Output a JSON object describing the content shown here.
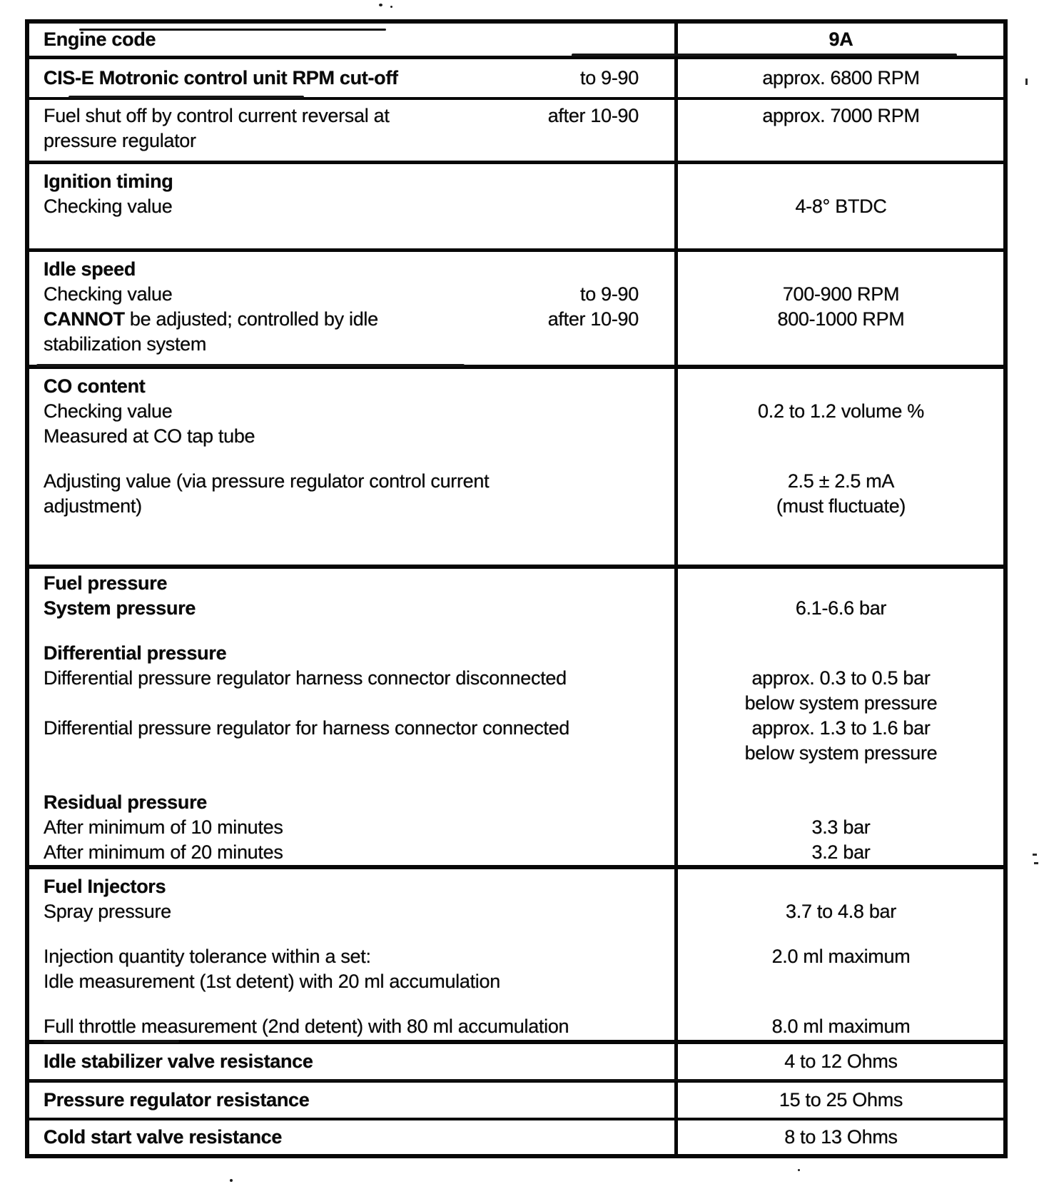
{
  "page": {
    "paper_color": "#ffffff",
    "ink_color": "#0a0a0a"
  },
  "table": {
    "rows": [
      {
        "lines": [
          {
            "left": {
              "text": "Engine code",
              "bold": true
            },
            "right": {
              "text": "9A",
              "bold": true
            }
          }
        ]
      },
      {
        "lines": [
          {
            "left": {
              "text": "CIS-E Motronic control unit RPM cut-off",
              "bold": true,
              "cond": "to 9-90"
            },
            "right": {
              "text": "approx. 6800 RPM"
            }
          }
        ]
      },
      {
        "lines": [
          {
            "left": {
              "text": "Fuel shut off by control current reversal at",
              "cond": "after 10-90"
            },
            "right": {
              "text": "approx. 7000 RPM"
            }
          },
          {
            "left": {
              "text": "pressure regulator"
            },
            "right": {
              "text": ""
            }
          }
        ]
      },
      {
        "lines": [
          {
            "left": {
              "text": "Ignition timing",
              "bold": true
            },
            "right": {
              "text": ""
            }
          },
          {
            "left": {
              "text": "Checking value"
            },
            "right": {
              "text": "4-8° BTDC"
            }
          }
        ]
      },
      {
        "lines": [
          {
            "left": {
              "text": "Idle speed",
              "bold": true
            },
            "right": {
              "text": ""
            }
          },
          {
            "left": {
              "text": "Checking value",
              "cond": "to 9-90"
            },
            "right": {
              "text": "700-900 RPM"
            }
          },
          {
            "left": {
              "bold_prefix": "CANNOT",
              "text": " be adjusted; controlled by idle",
              "cond": "after 10-90"
            },
            "right": {
              "text": "800-1000 RPM"
            }
          },
          {
            "left": {
              "text": "stabilization system"
            },
            "right": {
              "text": ""
            }
          }
        ]
      },
      {
        "lines": [
          {
            "left": {
              "text": "CO content",
              "bold": true
            },
            "right": {
              "text": ""
            }
          },
          {
            "left": {
              "text": "Checking value"
            },
            "right": {
              "text": "0.2 to 1.2 volume %"
            }
          },
          {
            "left": {
              "text": "Measured at CO tap tube"
            },
            "right": {
              "text": ""
            }
          },
          {
            "spacer": 28
          },
          {
            "left": {
              "text": "Adjusting value (via pressure regulator control current"
            },
            "right": {
              "text": "2.5 ± 2.5 mA"
            }
          },
          {
            "left": {
              "text": "adjustment)"
            },
            "right": {
              "text": "(must fluctuate)"
            }
          }
        ]
      },
      {
        "lines": [
          {
            "left": {
              "text": "Fuel pressure",
              "bold": true
            },
            "right": {
              "text": ""
            }
          },
          {
            "left": {
              "text": "System pressure",
              "bold": true
            },
            "right": {
              "text": "6.1-6.6 bar"
            }
          },
          {
            "spacer": 28
          },
          {
            "left": {
              "text": "Differential pressure",
              "bold": true
            },
            "right": {
              "text": ""
            }
          },
          {
            "left": {
              "text": "Differential pressure regulator harness connector disconnected"
            },
            "right": {
              "text": "approx. 0.3 to 0.5 bar"
            }
          },
          {
            "left": {
              "text": ""
            },
            "right": {
              "text": "below system pressure"
            }
          },
          {
            "left": {
              "text": "Differential pressure regulator for harness connector connected"
            },
            "right": {
              "text": "approx. 1.3 to 1.6 bar"
            }
          },
          {
            "left": {
              "text": ""
            },
            "right": {
              "text": "below system pressure"
            }
          },
          {
            "spacer": 34
          },
          {
            "left": {
              "text": "Residual pressure",
              "bold": true
            },
            "right": {
              "text": ""
            }
          },
          {
            "left": {
              "text": "After minimum of 10 minutes"
            },
            "right": {
              "text": "3.3 bar"
            }
          },
          {
            "left": {
              "text": "After minimum of 20 minutes"
            },
            "right": {
              "text": "3.2 bar"
            }
          }
        ]
      },
      {
        "lines": [
          {
            "left": {
              "text": "Fuel Injectors",
              "bold": true
            },
            "right": {
              "text": ""
            }
          },
          {
            "left": {
              "text": "Spray pressure"
            },
            "right": {
              "text": "3.7 to 4.8 bar"
            }
          },
          {
            "spacer": 28
          },
          {
            "left": {
              "text": "Injection quantity tolerance within a set:"
            },
            "right": {
              "text": "2.0 ml maximum"
            }
          },
          {
            "left": {
              "text": "Idle measurement (1st detent) with 20 ml accumulation"
            },
            "right": {
              "text": ""
            }
          },
          {
            "spacer": 28
          },
          {
            "left": {
              "text": "Full throttle measurement (2nd detent) with 80 ml accumulation"
            },
            "right": {
              "text": "8.0 ml maximum"
            }
          }
        ]
      },
      {
        "lines": [
          {
            "left": {
              "text": "Idle stabilizer valve resistance",
              "bold": true
            },
            "right": {
              "text": "4 to 12 Ohms"
            }
          }
        ]
      },
      {
        "lines": [
          {
            "left": {
              "text": "Pressure regulator resistance",
              "bold": true
            },
            "right": {
              "text": "15 to 25 Ohms"
            }
          }
        ]
      },
      {
        "lines": [
          {
            "left": {
              "text": "Cold start valve resistance",
              "bold": true
            },
            "right": {
              "text": "8 to 13 Ohms"
            }
          }
        ]
      }
    ]
  }
}
